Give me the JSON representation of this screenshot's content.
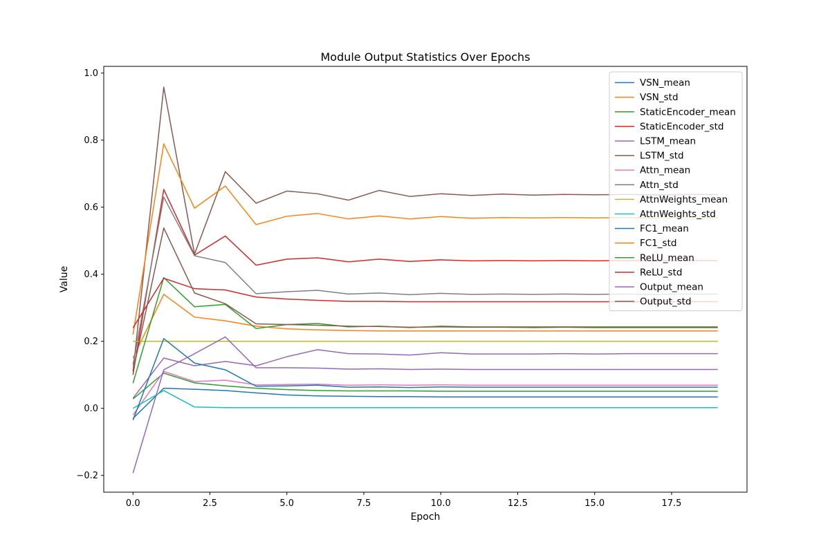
{
  "chart_data": {
    "type": "line",
    "title": "Module Output Statistics Over Epochs",
    "xlabel": "Epoch",
    "ylabel": "Value",
    "xlim": [
      -0.95,
      19.95
    ],
    "ylim": [
      -0.25,
      1.02
    ],
    "xticks": [
      0.0,
      2.5,
      5.0,
      7.5,
      10.0,
      12.5,
      15.0,
      17.5
    ],
    "xtick_labels": [
      "0.0",
      "2.5",
      "5.0",
      "7.5",
      "10.0",
      "12.5",
      "15.0",
      "17.5"
    ],
    "yticks": [
      -0.2,
      0.0,
      0.2,
      0.4,
      0.6,
      0.8,
      1.0
    ],
    "ytick_labels": [
      "−0.2",
      "0.0",
      "0.2",
      "0.4",
      "0.6",
      "0.8",
      "1.0"
    ],
    "grid": false,
    "legend_position": "top-right",
    "x": [
      0,
      1,
      2,
      3,
      4,
      5,
      6,
      7,
      8,
      9,
      10,
      11,
      12,
      13,
      14,
      15,
      16,
      17,
      18,
      19
    ],
    "series": [
      {
        "name": "VSN_mean",
        "color": "#1f77b4",
        "values": [
          -0.03,
          0.06,
          0.057,
          0.053,
          0.046,
          0.04,
          0.037,
          0.036,
          0.035,
          0.035,
          0.034,
          0.034,
          0.034,
          0.034,
          0.034,
          0.034,
          0.034,
          0.034,
          0.034,
          0.034
        ]
      },
      {
        "name": "VSN_std",
        "color": "#ff7f0e",
        "values": [
          0.15,
          0.34,
          0.272,
          0.261,
          0.245,
          0.237,
          0.234,
          0.232,
          0.231,
          0.231,
          0.231,
          0.231,
          0.231,
          0.231,
          0.231,
          0.231,
          0.231,
          0.231,
          0.231,
          0.231
        ]
      },
      {
        "name": "StaticEncoder_mean",
        "color": "#2ca02c",
        "values": [
          0.028,
          0.105,
          0.076,
          0.067,
          0.06,
          0.056,
          0.053,
          0.052,
          0.052,
          0.052,
          0.051,
          0.051,
          0.051,
          0.051,
          0.051,
          0.051,
          0.051,
          0.051,
          0.051,
          0.051
        ]
      },
      {
        "name": "StaticEncoder_std",
        "color": "#d62728",
        "values": [
          0.1,
          0.653,
          0.457,
          0.514,
          0.427,
          0.445,
          0.449,
          0.437,
          0.445,
          0.438,
          0.443,
          0.44,
          0.441,
          0.44,
          0.441,
          0.44,
          0.441,
          0.44,
          0.441,
          0.441
        ]
      },
      {
        "name": "LSTM_mean",
        "color": "#9467bd",
        "values": [
          0.03,
          0.15,
          0.127,
          0.14,
          0.127,
          0.154,
          0.175,
          0.163,
          0.162,
          0.159,
          0.166,
          0.162,
          0.162,
          0.162,
          0.163,
          0.162,
          0.163,
          0.163,
          0.163,
          0.163
        ]
      },
      {
        "name": "LSTM_std",
        "color": "#8c564b",
        "values": [
          0.11,
          0.958,
          0.46,
          0.706,
          0.612,
          0.648,
          0.64,
          0.621,
          0.65,
          0.632,
          0.64,
          0.635,
          0.639,
          0.636,
          0.638,
          0.637,
          0.638,
          0.637,
          0.638,
          0.638
        ]
      },
      {
        "name": "Attn_mean",
        "color": "#e377c2",
        "values": [
          -0.02,
          0.11,
          0.08,
          0.084,
          0.07,
          0.071,
          0.072,
          0.069,
          0.07,
          0.069,
          0.07,
          0.069,
          0.069,
          0.069,
          0.069,
          0.069,
          0.069,
          0.069,
          0.069,
          0.069
        ]
      },
      {
        "name": "Attn_std",
        "color": "#7f7f7f",
        "values": [
          0.13,
          0.63,
          0.455,
          0.435,
          0.342,
          0.348,
          0.352,
          0.341,
          0.344,
          0.339,
          0.343,
          0.34,
          0.341,
          0.34,
          0.341,
          0.34,
          0.341,
          0.34,
          0.341,
          0.341
        ]
      },
      {
        "name": "AttnWeights_mean",
        "color": "#bcbd22",
        "values": [
          0.2,
          0.2,
          0.2,
          0.2,
          0.2,
          0.2,
          0.2,
          0.2,
          0.2,
          0.2,
          0.2,
          0.2,
          0.2,
          0.2,
          0.2,
          0.2,
          0.2,
          0.2,
          0.2,
          0.2
        ]
      },
      {
        "name": "AttnWeights_std",
        "color": "#17becf",
        "values": [
          0.0,
          0.053,
          0.004,
          0.002,
          0.002,
          0.002,
          0.002,
          0.002,
          0.002,
          0.002,
          0.002,
          0.002,
          0.002,
          0.002,
          0.002,
          0.002,
          0.002,
          0.002,
          0.002,
          0.002
        ]
      },
      {
        "name": "FC1_mean",
        "color": "#1f77b4",
        "values": [
          -0.035,
          0.208,
          0.135,
          0.115,
          0.066,
          0.067,
          0.069,
          0.063,
          0.064,
          0.062,
          0.064,
          0.063,
          0.063,
          0.063,
          0.063,
          0.063,
          0.063,
          0.063,
          0.063,
          0.063
        ]
      },
      {
        "name": "FC1_std",
        "color": "#ff7f0e",
        "values": [
          0.22,
          0.789,
          0.597,
          0.663,
          0.548,
          0.573,
          0.581,
          0.565,
          0.574,
          0.565,
          0.572,
          0.567,
          0.569,
          0.568,
          0.569,
          0.568,
          0.569,
          0.568,
          0.569,
          0.569
        ]
      },
      {
        "name": "ReLU_mean",
        "color": "#2ca02c",
        "values": [
          0.075,
          0.39,
          0.303,
          0.31,
          0.238,
          0.25,
          0.253,
          0.243,
          0.245,
          0.241,
          0.245,
          0.243,
          0.243,
          0.243,
          0.243,
          0.243,
          0.243,
          0.243,
          0.243,
          0.243
        ]
      },
      {
        "name": "ReLU_std",
        "color": "#d62728",
        "values": [
          0.24,
          0.388,
          0.357,
          0.353,
          0.332,
          0.326,
          0.322,
          0.319,
          0.319,
          0.318,
          0.318,
          0.318,
          0.318,
          0.318,
          0.318,
          0.318,
          0.318,
          0.318,
          0.318,
          0.318
        ]
      },
      {
        "name": "Output_mean",
        "color": "#9467bd",
        "values": [
          -0.193,
          0.115,
          0.163,
          0.213,
          0.121,
          0.121,
          0.12,
          0.117,
          0.118,
          0.116,
          0.117,
          0.116,
          0.116,
          0.116,
          0.116,
          0.116,
          0.116,
          0.116,
          0.116,
          0.116
        ]
      },
      {
        "name": "Output_std",
        "color": "#8c564b",
        "values": [
          0.11,
          0.538,
          0.344,
          0.312,
          0.252,
          0.25,
          0.248,
          0.245,
          0.244,
          0.242,
          0.243,
          0.242,
          0.242,
          0.241,
          0.242,
          0.241,
          0.241,
          0.241,
          0.241,
          0.241
        ]
      }
    ]
  }
}
